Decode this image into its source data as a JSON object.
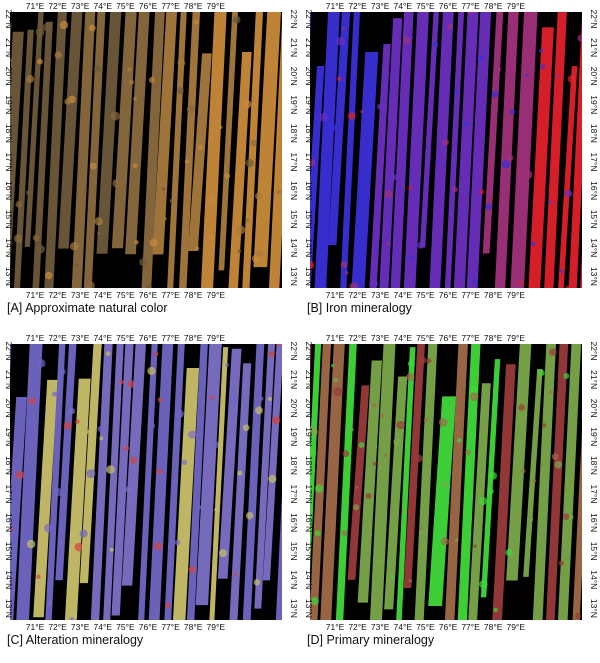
{
  "panels": [
    {
      "id": "A",
      "caption": "[A] Approximate natural color",
      "style": "natural"
    },
    {
      "id": "B",
      "caption": "[B] Iron mineralogy",
      "style": "iron"
    },
    {
      "id": "C",
      "caption": "[C] Alteration mineralogy",
      "style": "alteration"
    },
    {
      "id": "D",
      "caption": "[D] Primary mineralogy",
      "style": "primary"
    }
  ],
  "lon_labels": [
    "71°E",
    "72°E",
    "73°E",
    "74°E",
    "75°E",
    "76°E",
    "77°E",
    "78°E",
    "79°E"
  ],
  "lat_labels": [
    "22°N",
    "21°N",
    "20°N",
    "19°N",
    "18°N",
    "17°N",
    "16°N",
    "15°N",
    "14°N",
    "13°N"
  ],
  "colors": {
    "background_nodata": "#000000",
    "natural": [
      "#6e5a3a",
      "#8a6a3e",
      "#a67a3e",
      "#c98a3a"
    ],
    "iron": [
      "#3a2fd8",
      "#6a2fc0",
      "#a0307a",
      "#e0202a"
    ],
    "alteration": [
      "#6f66c4",
      "#7c70c6",
      "#c8c06a",
      "#d84040"
    ],
    "primary": [
      "#a06a48",
      "#7aa84a",
      "#9a3a3a",
      "#3fd83a"
    ]
  }
}
